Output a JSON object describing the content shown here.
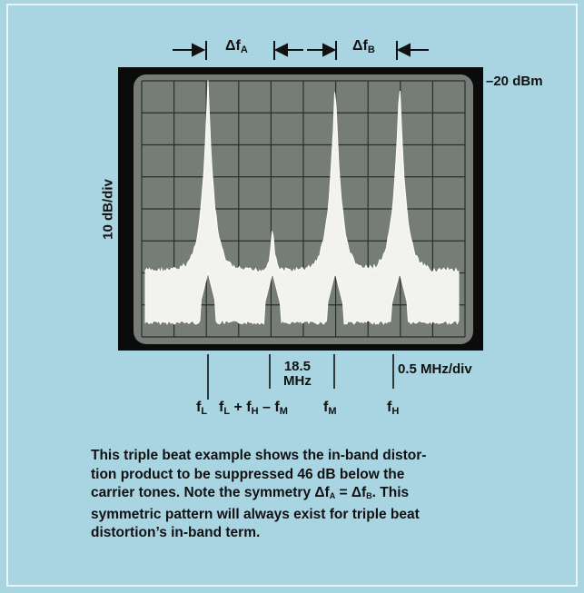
{
  "figure": {
    "delta_a": [
      "Δf",
      "A"
    ],
    "delta_b": [
      "Δf",
      "B"
    ],
    "reference_level": "–20 dBm",
    "vertical_scale": "10 dB/div",
    "center_frequency": [
      "18.5",
      "MHz"
    ],
    "horizontal_scale": "0.5 MHz/div",
    "markers": [
      [
        "f",
        "L"
      ],
      [
        "f",
        "L",
        " + f",
        "H",
        " – f",
        "M"
      ],
      [
        "f",
        "M"
      ],
      [
        "f",
        "H"
      ]
    ]
  },
  "caption": {
    "lines": [
      [
        "This triple beat example shows the in-band distor-"
      ],
      [
        "tion product to be suppressed 46 dB below the"
      ],
      [
        "carrier tones. Note the symmetry Δf",
        "A",
        " = Δf",
        "B",
        ". This"
      ],
      [
        "symmetric pattern will always exist for triple beat"
      ],
      [
        "distortion’s in-band term."
      ]
    ]
  }
}
